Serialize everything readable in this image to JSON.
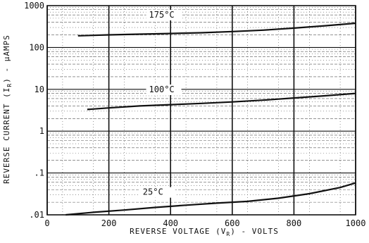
{
  "chart_data": {
    "type": "line",
    "title": "",
    "xlabel": "REVERSE VOLTAGE (V_R) - VOLTS",
    "ylabel": "REVERSE CURRENT (I_R) - µAMPS",
    "xlabel_parts": {
      "main": "REVERSE VOLTAGE (V",
      "sub": "R",
      "tail": ") - VOLTS"
    },
    "ylabel_parts": {
      "main": "REVERSE CURRENT (I",
      "sub": "R",
      "tail": ") - µAMPS"
    },
    "x_scale": "linear",
    "y_scale": "log",
    "xlim": [
      0,
      1000
    ],
    "ylim": [
      0.01,
      1000
    ],
    "x_ticks": [
      {
        "value": 0,
        "label": "0"
      },
      {
        "value": 200,
        "label": "200"
      },
      {
        "value": 400,
        "label": "400"
      },
      {
        "value": 600,
        "label": "600"
      },
      {
        "value": 800,
        "label": "800"
      },
      {
        "value": 1000,
        "label": "1000"
      }
    ],
    "y_ticks": [
      {
        "value": 1000,
        "label": "1000"
      },
      {
        "value": 100,
        "label": "100"
      },
      {
        "value": 10,
        "label": "10"
      },
      {
        "value": 1,
        "label": "1"
      },
      {
        "value": 0.1,
        "label": ".1"
      },
      {
        "value": 0.01,
        "label": ".01"
      }
    ],
    "grid": true,
    "series": [
      {
        "name": "175°C",
        "x": [
          100,
          200,
          300,
          370,
          500,
          600,
          700,
          800,
          900,
          1000
        ],
        "y": [
          190,
          200,
          208,
          213,
          225,
          240,
          260,
          290,
          330,
          380
        ]
      },
      {
        "name": "100°C",
        "x": [
          130,
          200,
          300,
          400,
          500,
          600,
          700,
          800,
          900,
          1000
        ],
        "y": [
          3.3,
          3.6,
          4.0,
          4.3,
          4.6,
          5.0,
          5.5,
          6.2,
          7.0,
          8.0
        ]
      },
      {
        "name": "25°C",
        "x": [
          60,
          150,
          250,
          350,
          450,
          550,
          650,
          750,
          850,
          950,
          1000
        ],
        "y": [
          0.01,
          0.0115,
          0.013,
          0.015,
          0.017,
          0.019,
          0.021,
          0.025,
          0.032,
          0.045,
          0.058
        ]
      }
    ],
    "curve_labels": [
      {
        "series": "175°C",
        "text": "175°C",
        "x": 330,
        "y": 520
      },
      {
        "series": "100°C",
        "text": "100°C",
        "x": 330,
        "y": 8.5
      },
      {
        "series": "25°C",
        "text": "25°C",
        "x": 310,
        "y": 0.03
      }
    ]
  }
}
